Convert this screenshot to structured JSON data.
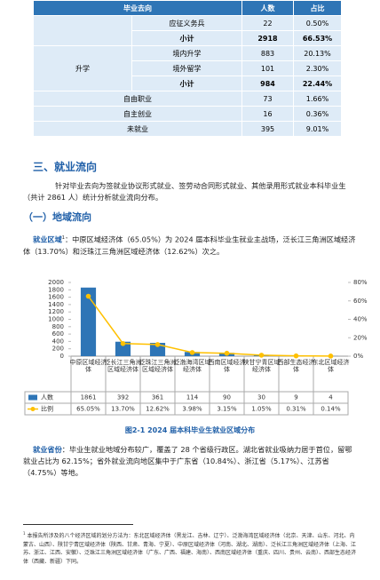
{
  "table": {
    "header": [
      "毕业去向",
      "人数",
      "占比"
    ],
    "rows": [
      [
        "应征义务兵",
        "22",
        "0.50%"
      ],
      [
        "小计",
        "2918",
        "66.53%"
      ],
      [
        "升学",
        "境内升学",
        "883",
        "20.13%"
      ],
      [
        "境外留学",
        "101",
        "2.30%"
      ],
      [
        "小计",
        "984",
        "22.44%"
      ],
      [
        "自由职业",
        "73",
        "1.66%"
      ],
      [
        "自主创业",
        "16",
        "0.36%"
      ],
      [
        "未就业",
        "395",
        "9.01%"
      ]
    ]
  },
  "section": {
    "heading": "三、就业流向",
    "intro": "针对毕业去向为签就业协议形式就业、签劳动合同形式就业、其他录用形式就业本科毕业生（共计 2861 人）统计分析就业流向分布。",
    "subheading": "（一）地域流向",
    "region": {
      "label": "就业区域",
      "note": "1",
      "text": "：中原区域经济体（65.05%）为 2024 届本科毕业生就业主战场，泛长江三角洲区域经济体（13.70%）和泛珠江三角洲区域经济体（12.62%）次之。"
    },
    "province": {
      "label": "就业省份",
      "text": "：毕业生就业地域分布较广，覆盖了 28 个省级行政区。湖北省就业吸纳力居于首位，留鄂就业占比为 62.15%；省外就业流向地区集中于广东省（10.84%）、浙江省（5.17%）、江苏省（4.75%）等地。"
    }
  },
  "chart_data": {
    "type": "bar-line",
    "categories": [
      "中原区域经济体",
      "泛长江三角洲区域经济体",
      "泛珠江三角洲区域经济体",
      "泛渤海湾区域经济体",
      "西南区域经济体",
      "陕甘宁青区域经济体",
      "西部生态经济体",
      "东北区域经济体"
    ],
    "series": [
      {
        "name": "人数",
        "color": "#2e75b6",
        "values": [
          1861,
          392,
          361,
          114,
          90,
          30,
          9,
          4
        ]
      },
      {
        "name": "比例",
        "color": "#ffc000",
        "axis": "y2",
        "values": [
          65.05,
          13.7,
          12.62,
          3.98,
          3.15,
          1.05,
          0.31,
          0.14
        ],
        "value_labels": [
          "65.05%",
          "13.70%",
          "12.62%",
          "3.98%",
          "3.15%",
          "1.05%",
          "0.31%",
          "0.14%"
        ]
      }
    ],
    "ylim": [
      0,
      2000
    ],
    "yticks": [
      0,
      200,
      400,
      600,
      800,
      1000,
      1200,
      1400,
      1600,
      1800,
      2000
    ],
    "y2lim": [
      0,
      80
    ],
    "y2ticks": [
      {
        "value": 0,
        "label": "0%"
      },
      {
        "value": 20,
        "label": "20%"
      },
      {
        "value": 40,
        "label": "40%"
      },
      {
        "value": 60,
        "label": "60%"
      },
      {
        "value": 80,
        "label": "80%"
      }
    ],
    "caption": "图2-1   2024 届本科毕业生就业区域分布"
  },
  "footnote": {
    "mark": "1",
    "text": "本报告所涉及的八个经济区域的划分方法为：东北区域经济体（黑龙江、吉林、辽宁）、泛渤海湾区域经济体（北京、天津、山东、河北、内蒙古、山西）、陕甘宁青区域经济体（陕西、甘肃、青海、宁夏）、中原区域经济体（河南、湖北、湖南）、泛长江三角洲区域经济体（上海、江苏、浙江、江西、安徽）、泛珠江三角洲区域经济体（广东、广西、福建、海南）、西南区域经济体（重庆、四川、贵州、云南）、西部生态经济体（西藏、新疆）下同。"
  }
}
